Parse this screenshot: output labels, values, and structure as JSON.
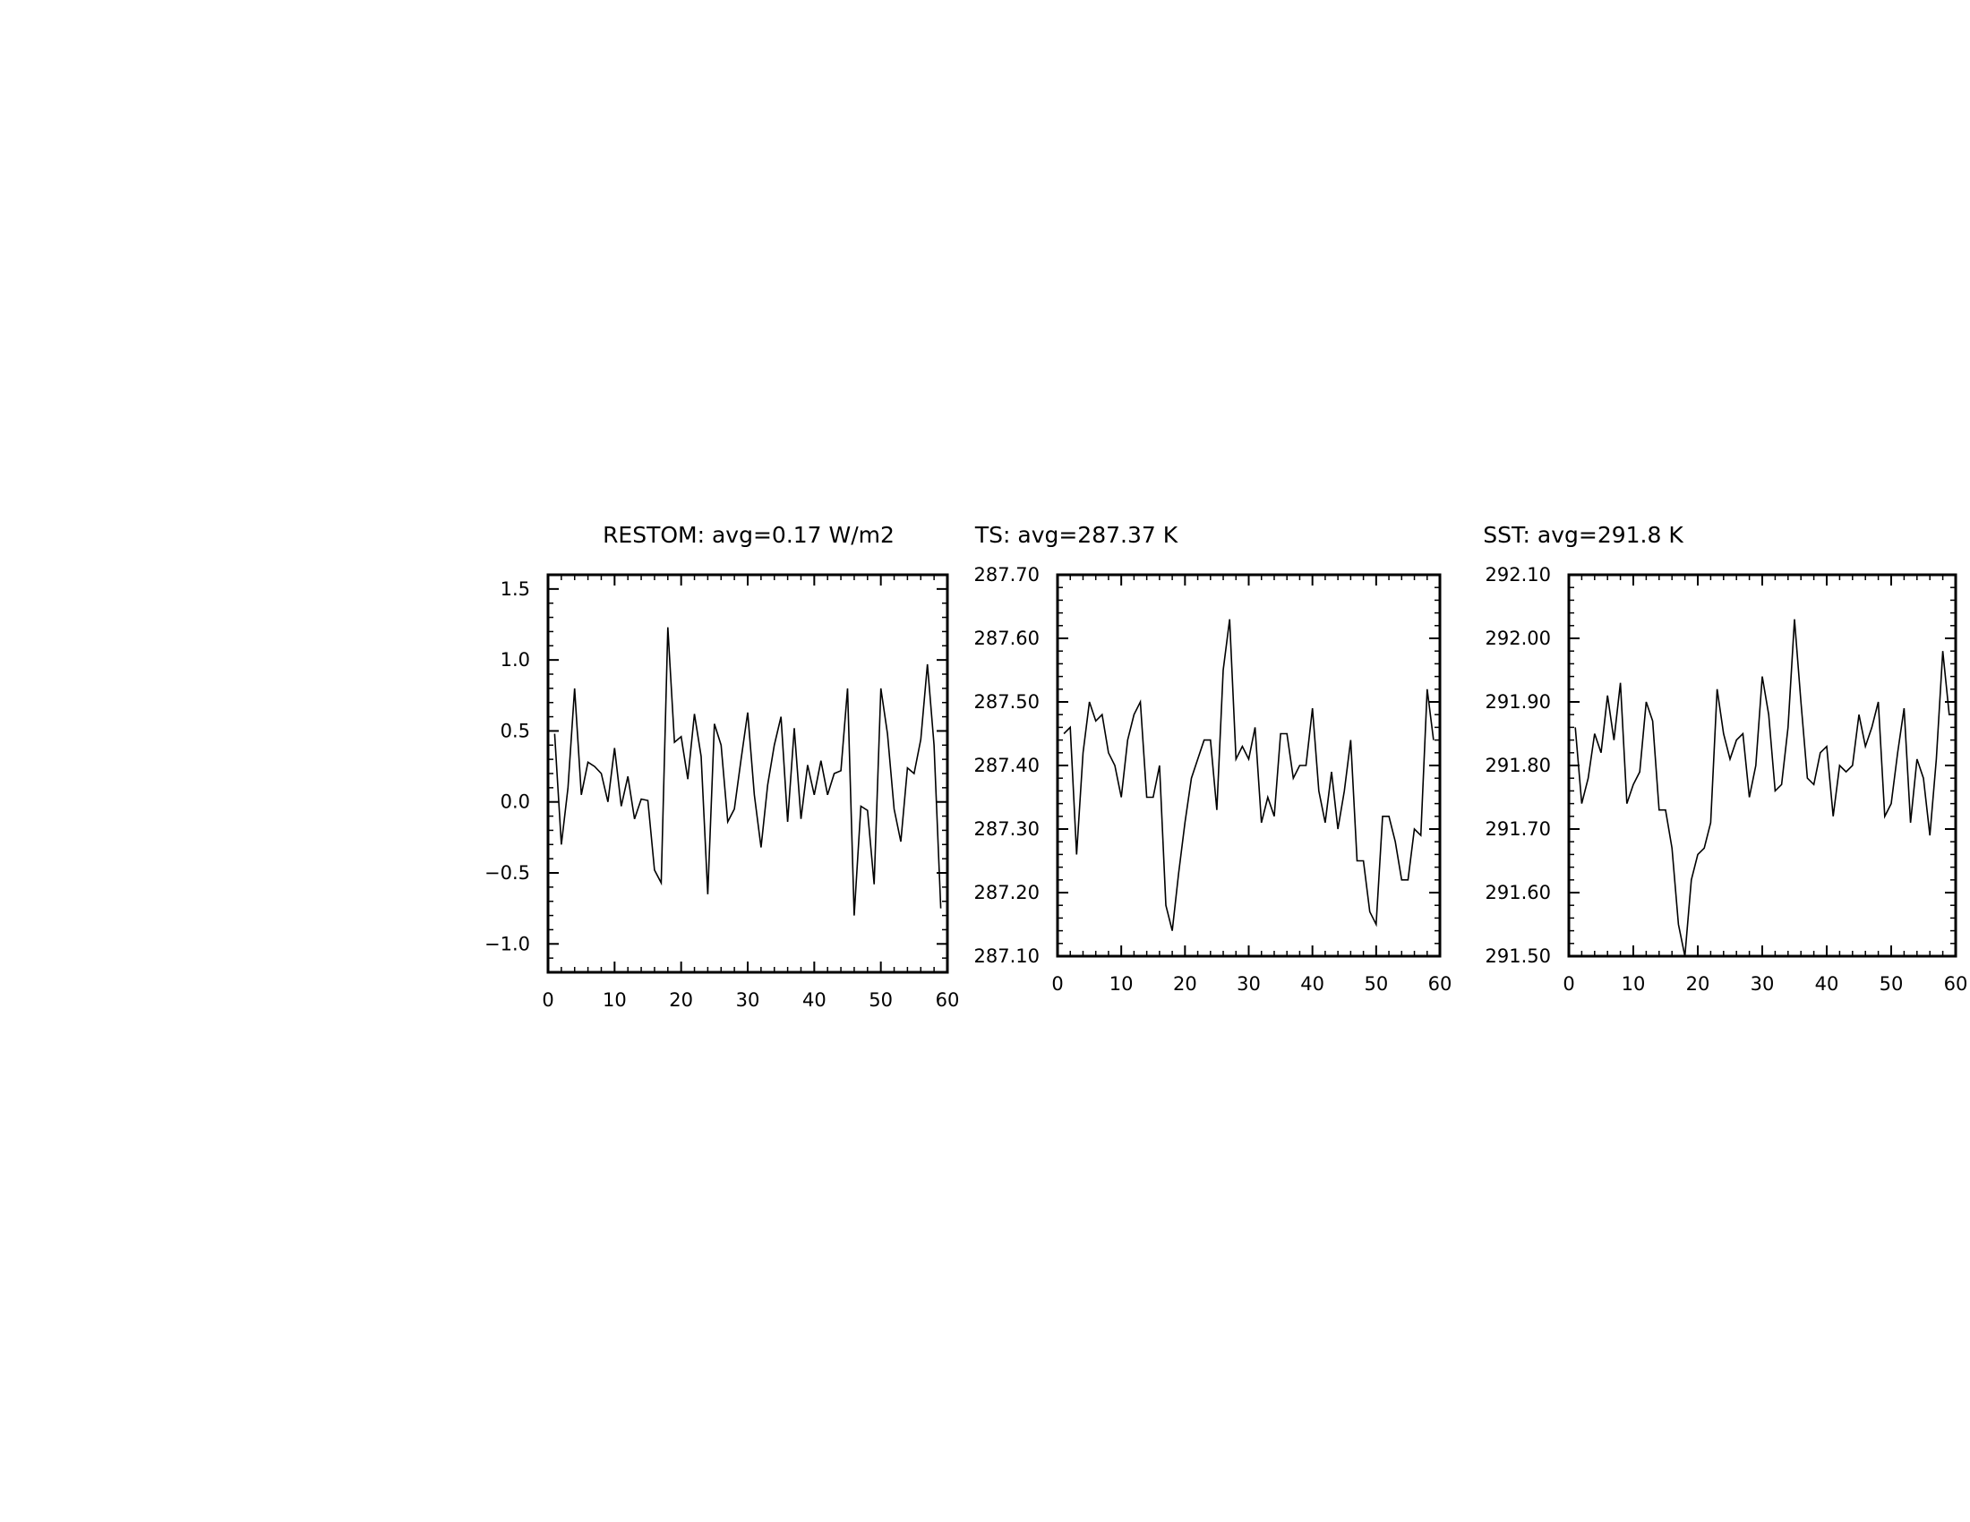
{
  "chart_data": [
    {
      "type": "line",
      "title": "RESTOM: avg=0.17 W/m2",
      "xlim": [
        0,
        60
      ],
      "ylim": [
        -1.2,
        1.6
      ],
      "x_ticks": [
        "0",
        "10",
        "20",
        "30",
        "40",
        "50",
        "60"
      ],
      "y_ticks": [
        {
          "value": 1.5,
          "label": "1.5"
        },
        {
          "value": 1.0,
          "label": "1.0"
        },
        {
          "value": 0.5,
          "label": "0.5"
        },
        {
          "value": 0.0,
          "label": "0.0"
        },
        {
          "value": -0.5,
          "label": "−0.5"
        },
        {
          "value": -1.0,
          "label": "−1.0"
        }
      ],
      "series": [
        {
          "x": [
            1,
            2,
            3,
            4,
            5,
            6,
            7,
            8,
            9,
            10,
            11,
            12,
            13,
            14,
            15,
            16,
            17,
            18,
            19,
            20,
            21,
            22,
            23,
            24,
            25,
            26,
            27,
            28,
            29,
            30,
            31,
            32,
            33,
            34,
            35,
            36,
            37,
            38,
            39,
            40,
            41,
            42,
            43,
            44,
            45,
            46,
            47,
            48,
            49,
            50,
            51,
            52,
            53,
            54,
            55,
            56,
            57,
            58,
            59
          ],
          "values": [
            0.48,
            -0.3,
            0.1,
            0.8,
            0.05,
            0.28,
            0.25,
            0.2,
            0.0,
            0.38,
            -0.03,
            0.18,
            -0.12,
            0.02,
            0.01,
            -0.48,
            -0.57,
            1.23,
            0.42,
            0.46,
            0.16,
            0.62,
            0.32,
            -0.65,
            0.55,
            0.4,
            -0.14,
            -0.05,
            0.3,
            0.63,
            0.05,
            -0.32,
            0.12,
            0.4,
            0.6,
            -0.14,
            0.52,
            -0.12,
            0.26,
            0.05,
            0.29,
            0.05,
            0.2,
            0.22,
            0.8,
            -0.8,
            -0.03,
            -0.06,
            -0.58,
            0.8,
            0.48,
            -0.05,
            -0.28,
            0.24,
            0.2,
            0.44,
            0.97,
            0.4,
            -0.75
          ]
        }
      ]
    },
    {
      "type": "line",
      "title": "TS: avg=287.37 K",
      "xlim": [
        0,
        60
      ],
      "ylim": [
        287.1,
        287.7
      ],
      "x_ticks": [
        "0",
        "10",
        "20",
        "30",
        "40",
        "50",
        "60"
      ],
      "y_ticks": [
        {
          "value": 287.7,
          "label": "287.70"
        },
        {
          "value": 287.6,
          "label": "287.60"
        },
        {
          "value": 287.5,
          "label": "287.50"
        },
        {
          "value": 287.4,
          "label": "287.40"
        },
        {
          "value": 287.3,
          "label": "287.30"
        },
        {
          "value": 287.2,
          "label": "287.20"
        },
        {
          "value": 287.1,
          "label": "287.10"
        }
      ],
      "series": [
        {
          "x": [
            1,
            2,
            3,
            4,
            5,
            6,
            7,
            8,
            9,
            10,
            11,
            12,
            13,
            14,
            15,
            16,
            17,
            18,
            19,
            20,
            21,
            22,
            23,
            24,
            25,
            26,
            27,
            28,
            29,
            30,
            31,
            32,
            33,
            34,
            35,
            36,
            37,
            38,
            39,
            40,
            41,
            42,
            43,
            44,
            45,
            46,
            47,
            48,
            49,
            50,
            51,
            52,
            53,
            54,
            55,
            56,
            57,
            58,
            59
          ],
          "values": [
            287.45,
            287.46,
            287.26,
            287.42,
            287.5,
            287.47,
            287.48,
            287.42,
            287.4,
            287.35,
            287.44,
            287.48,
            287.5,
            287.35,
            287.35,
            287.4,
            287.18,
            287.14,
            287.23,
            287.31,
            287.38,
            287.41,
            287.44,
            287.44,
            287.33,
            287.55,
            287.63,
            287.41,
            287.43,
            287.41,
            287.46,
            287.31,
            287.35,
            287.32,
            287.45,
            287.45,
            287.38,
            287.4,
            287.4,
            287.49,
            287.36,
            287.31,
            287.39,
            287.3,
            287.36,
            287.44,
            287.25,
            287.25,
            287.17,
            287.15,
            287.32,
            287.32,
            287.28,
            287.22,
            287.22,
            287.3,
            287.29,
            287.52,
            287.44
          ]
        }
      ]
    },
    {
      "type": "line",
      "title": "SST: avg=291.8 K",
      "xlim": [
        0,
        60
      ],
      "ylim": [
        291.5,
        292.1
      ],
      "x_ticks": [
        "0",
        "10",
        "20",
        "30",
        "40",
        "50",
        "60"
      ],
      "y_ticks": [
        {
          "value": 292.1,
          "label": "292.10"
        },
        {
          "value": 292.0,
          "label": "292.00"
        },
        {
          "value": 291.9,
          "label": "291.90"
        },
        {
          "value": 291.8,
          "label": "291.80"
        },
        {
          "value": 291.7,
          "label": "291.70"
        },
        {
          "value": 291.6,
          "label": "291.60"
        },
        {
          "value": 291.5,
          "label": "291.50"
        }
      ],
      "series": [
        {
          "x": [
            1,
            2,
            3,
            4,
            5,
            6,
            7,
            8,
            9,
            10,
            11,
            12,
            13,
            14,
            15,
            16,
            17,
            18,
            19,
            20,
            21,
            22,
            23,
            24,
            25,
            26,
            27,
            28,
            29,
            30,
            31,
            32,
            33,
            34,
            35,
            36,
            37,
            38,
            39,
            40,
            41,
            42,
            43,
            44,
            45,
            46,
            47,
            48,
            49,
            50,
            51,
            52,
            53,
            54,
            55,
            56,
            57,
            58,
            59,
            60
          ],
          "values": [
            291.86,
            291.74,
            291.78,
            291.85,
            291.82,
            291.91,
            291.84,
            291.93,
            291.74,
            291.77,
            291.79,
            291.9,
            291.87,
            291.73,
            291.73,
            291.67,
            291.55,
            291.5,
            291.62,
            291.66,
            291.67,
            291.71,
            291.92,
            291.85,
            291.81,
            291.84,
            291.85,
            291.75,
            291.8,
            291.94,
            291.88,
            291.76,
            291.77,
            291.86,
            292.03,
            291.9,
            291.78,
            291.77,
            291.82,
            291.83,
            291.72,
            291.8,
            291.79,
            291.8,
            291.88,
            291.83,
            291.86,
            291.9,
            291.72,
            291.74,
            291.82,
            291.89,
            291.71,
            291.81,
            291.78,
            291.69,
            291.81,
            291.98,
            291.88,
            291.88
          ]
        }
      ]
    }
  ]
}
